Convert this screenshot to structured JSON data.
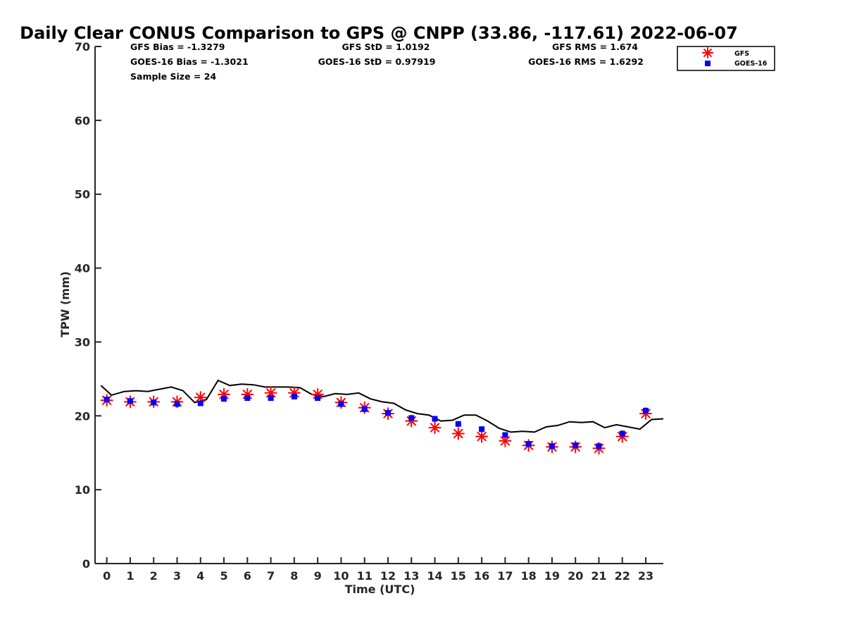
{
  "chart_data": {
    "type": "scatter",
    "title": "Daily Clear CONUS Comparison to GPS @ CNPP (33.86, -117.61) 2022-06-07",
    "xlabel": "Time (UTC)",
    "ylabel": "TPW (mm)",
    "xlim": [
      -0.5,
      23.75
    ],
    "ylim": [
      0,
      70
    ],
    "xticks": [
      "0",
      "1",
      "2",
      "3",
      "4",
      "5",
      "6",
      "7",
      "8",
      "9",
      "10",
      "11",
      "12",
      "13",
      "14",
      "15",
      "16",
      "17",
      "18",
      "19",
      "20",
      "21",
      "22",
      "23"
    ],
    "yticks": [
      "0",
      "10",
      "20",
      "30",
      "40",
      "50",
      "60",
      "70"
    ],
    "grid": false,
    "legend_position": "top-right",
    "stats": {
      "gfs_bias": "GFS Bias = -1.3279",
      "goes_bias": "GOES-16 Bias = -1.3021",
      "sample_size": "Sample Size = 24",
      "gfs_std": "GFS StD = 1.0192",
      "goes_std": "GOES-16 StD = 0.97919",
      "gfs_rms": "GFS RMS = 1.674",
      "goes_rms": "GOES-16 RMS = 1.6292"
    },
    "series": [
      {
        "name": "GFS",
        "marker": "asterisk",
        "color": "#ff0000",
        "x": [
          0,
          1,
          2,
          3,
          4,
          5,
          6,
          7,
          8,
          9,
          10,
          11,
          12,
          13,
          14,
          15,
          16,
          17,
          18,
          19,
          20,
          21,
          22,
          23
        ],
        "y": [
          22.1,
          21.9,
          21.9,
          21.9,
          22.5,
          22.9,
          22.9,
          23.1,
          23.1,
          22.9,
          21.8,
          21.1,
          20.3,
          19.3,
          18.4,
          17.6,
          17.2,
          16.6,
          16.0,
          15.8,
          15.8,
          15.6,
          17.2,
          20.3
        ]
      },
      {
        "name": "GOES-16",
        "marker": "square",
        "color": "#0000ff",
        "x": [
          0,
          1,
          2,
          3,
          4,
          5,
          6,
          7,
          8,
          9,
          10,
          11,
          12,
          13,
          14,
          15,
          16,
          17,
          18,
          19,
          20,
          21,
          22,
          23
        ],
        "y": [
          22.2,
          22.0,
          21.8,
          21.6,
          21.7,
          22.3,
          22.4,
          22.4,
          22.6,
          22.4,
          21.6,
          20.9,
          20.4,
          19.7,
          19.6,
          18.9,
          18.2,
          17.4,
          16.2,
          15.9,
          16.0,
          15.9,
          17.6,
          20.7
        ]
      },
      {
        "name": "",
        "marker": "line",
        "color": "#000000",
        "x": [
          -0.25,
          0.2,
          0.75,
          1.25,
          1.75,
          2.25,
          2.75,
          3.25,
          3.75,
          4.25,
          4.75,
          5.25,
          5.75,
          6.25,
          6.75,
          7.25,
          7.75,
          8.25,
          8.75,
          9.25,
          9.75,
          10.25,
          10.75,
          11.25,
          11.75,
          12.25,
          12.75,
          13.25,
          13.75,
          14.25,
          14.75,
          15.25,
          15.75,
          16.25,
          16.75,
          17.25,
          17.75,
          18.25,
          18.75,
          19.25,
          19.75,
          20.25,
          20.75,
          21.25,
          21.75,
          22.25,
          22.75,
          23.25,
          23.75
        ],
        "y": [
          24.1,
          22.8,
          23.3,
          23.4,
          23.3,
          23.6,
          23.9,
          23.4,
          21.8,
          22.2,
          24.8,
          24.1,
          24.3,
          24.2,
          23.9,
          23.9,
          23.9,
          23.8,
          22.9,
          22.6,
          23.0,
          22.9,
          23.1,
          22.3,
          21.9,
          21.7,
          20.8,
          20.3,
          20.1,
          19.3,
          19.4,
          20.1,
          20.1,
          19.3,
          18.3,
          17.8,
          17.9,
          17.8,
          18.5,
          18.7,
          19.2,
          19.1,
          19.2,
          18.4,
          18.8,
          18.5,
          18.2,
          19.5,
          19.6
        ]
      }
    ]
  }
}
